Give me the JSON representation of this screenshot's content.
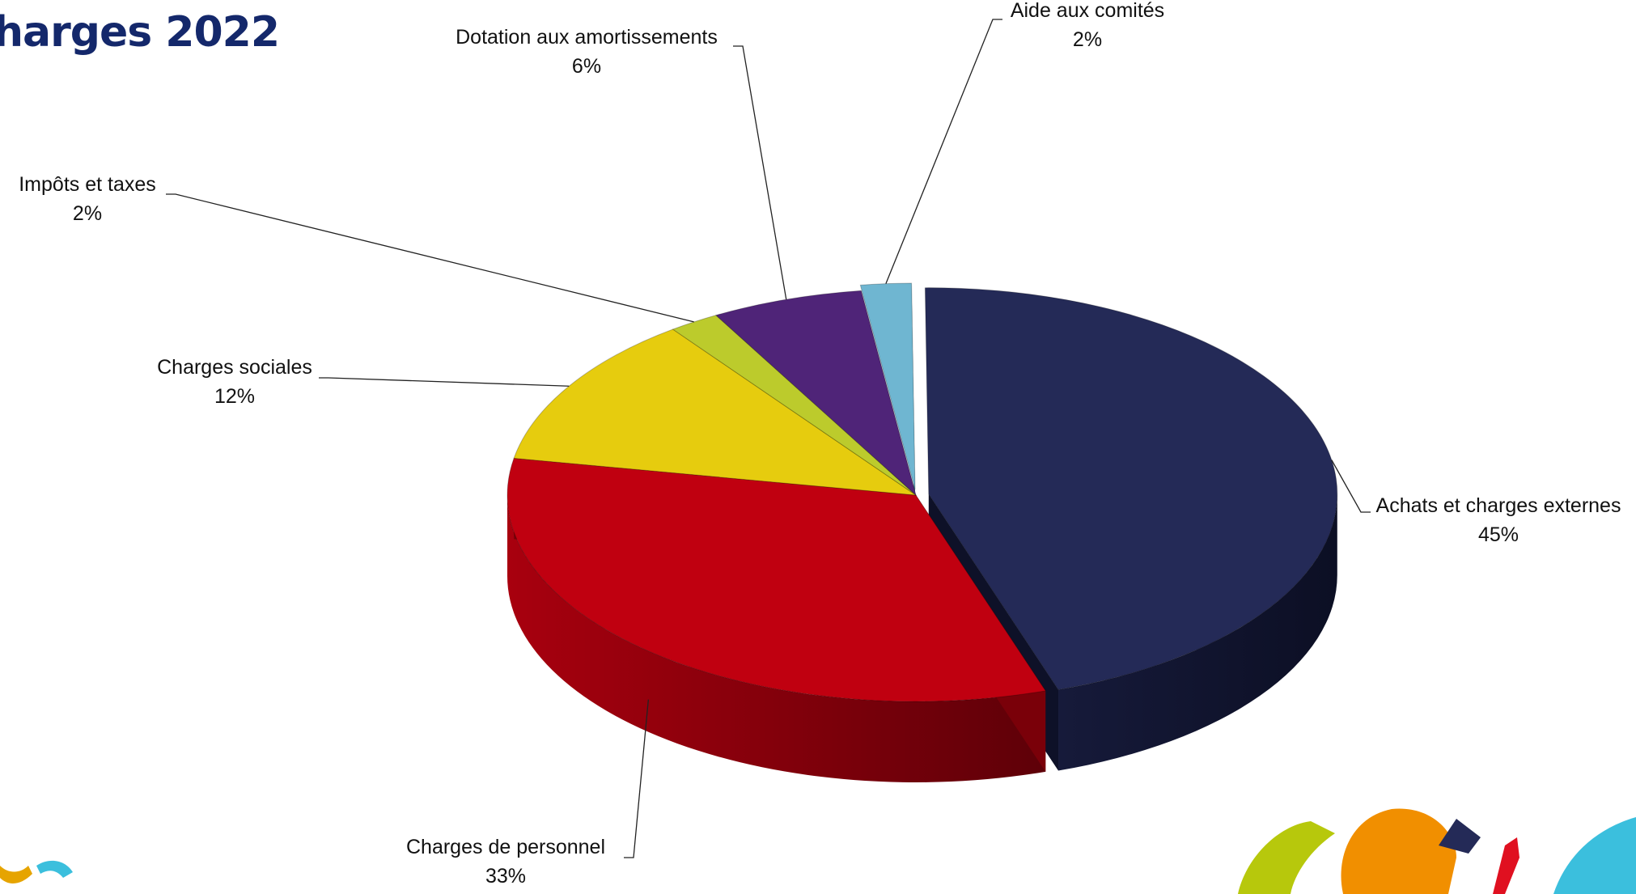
{
  "title": "harges 2022",
  "chart_data": {
    "type": "pie",
    "title": "harges 2022",
    "slices": [
      {
        "label": "Achats et charges externes",
        "value": 45,
        "display": "45%",
        "color": "#242a57"
      },
      {
        "label": "Charges de personnel",
        "value": 33,
        "display": "33%",
        "color": "#c00010"
      },
      {
        "label": "Charges sociales",
        "value": 12,
        "display": "12%",
        "color": "#e6cc0e"
      },
      {
        "label": "Impôts et taxes",
        "value": 2,
        "display": "2%",
        "color": "#bccb2c"
      },
      {
        "label": "Dotation aux amortissements",
        "value": 6,
        "display": "6%",
        "color": "#4f2478"
      },
      {
        "label": "Aide aux comités",
        "value": 2,
        "display": "2%",
        "color": "#6fb6d1"
      }
    ],
    "labels_outside": true,
    "three_d": true
  }
}
